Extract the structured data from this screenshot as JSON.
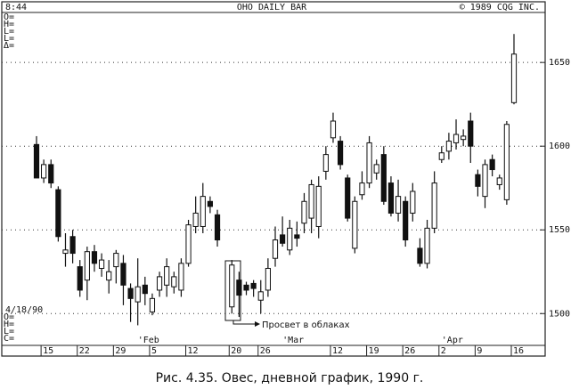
{
  "chart_data": {
    "type": "candlestick",
    "time": "8:44",
    "title": "OHO DAILY BAR",
    "copyright": "© 1989 CQG INC.",
    "readout_top": [
      "O=",
      "H=",
      "L=",
      "L=",
      "Δ="
    ],
    "readout_bottom": [
      "O=",
      "H=",
      "L=",
      "C="
    ],
    "date_label": "4/18/90",
    "annotation": "Просвет в облаках",
    "color": "#111111",
    "categories": [
      null,
      "15",
      null,
      null,
      null,
      null,
      "22",
      null,
      null,
      null,
      null,
      "29",
      null,
      null,
      null,
      null,
      "5",
      null,
      null,
      null,
      null,
      "12",
      null,
      null,
      null,
      null,
      null,
      "20",
      null,
      null,
      null,
      "26",
      null,
      null,
      null,
      null,
      null,
      null,
      null,
      null,
      null,
      "12",
      null,
      null,
      null,
      null,
      "19",
      null,
      null,
      null,
      null,
      "26",
      null,
      null,
      null,
      null,
      "2",
      null,
      null,
      null,
      null,
      "9",
      null,
      null,
      null,
      null,
      "16"
    ],
    "months": [
      null,
      null,
      null,
      null,
      null,
      null,
      null,
      null,
      null,
      null,
      null,
      null,
      null,
      null,
      "'Feb",
      null,
      null,
      null,
      null,
      null,
      null,
      null,
      null,
      null,
      null,
      null,
      null,
      null,
      null,
      null,
      null,
      null,
      null,
      null,
      "'Mar",
      null,
      null,
      null,
      null,
      null,
      null,
      null,
      null,
      null,
      null,
      null,
      null,
      null,
      null,
      null,
      null,
      null,
      null,
      null,
      null,
      null,
      "'Apr",
      null,
      null,
      null,
      null,
      null,
      null,
      null,
      null,
      null,
      null
    ],
    "open": [
      1601,
      1581,
      1589,
      1574,
      1536,
      1546,
      1528,
      1520,
      1537,
      1527,
      1520,
      1528,
      1530,
      1515,
      1507,
      1517,
      1501,
      1514,
      1517,
      1516,
      1514,
      1530,
      1552,
      1552,
      1567,
      1559,
      null,
      1504,
      1520,
      1517,
      1518,
      1508,
      1514,
      1533,
      1547,
      1538,
      1547,
      1554,
      1557,
      1552,
      1585,
      1605,
      1603,
      1581,
      1539,
      1571,
      1578,
      1584,
      1595,
      1578,
      1560,
      1567,
      1560,
      1539,
      1530,
      1551,
      1592,
      1597,
      1602,
      1604,
      1615,
      1583,
      1570,
      1592,
      1577,
      1568,
      1626
    ],
    "high": [
      1606,
      1592,
      1592,
      1576,
      1548,
      1550,
      1532,
      1540,
      1541,
      1536,
      1532,
      1538,
      1535,
      1518,
      1533,
      1522,
      1512,
      1525,
      1533,
      1525,
      1533,
      1556,
      1570,
      1578,
      1570,
      1562,
      null,
      1532,
      1525,
      1519,
      1520,
      1520,
      1533,
      1552,
      1558,
      1556,
      1555,
      1572,
      1580,
      1582,
      1600,
      1620,
      1606,
      1583,
      1570,
      1585,
      1606,
      1592,
      1600,
      1582,
      1580,
      1570,
      1578,
      1545,
      1556,
      1585,
      1600,
      1608,
      1616,
      1610,
      1620,
      1586,
      1592,
      1595,
      1583,
      1615,
      1667
    ],
    "low": [
      1581,
      1578,
      1575,
      1543,
      1528,
      1530,
      1510,
      1508,
      1525,
      1522,
      1512,
      1518,
      1505,
      1495,
      1493,
      1505,
      1499,
      1510,
      1510,
      1512,
      1510,
      1528,
      1548,
      1548,
      1560,
      1540,
      null,
      1500,
      1498,
      1511,
      1510,
      1500,
      1510,
      1528,
      1540,
      1535,
      1540,
      1548,
      1548,
      1545,
      1580,
      1602,
      1586,
      1555,
      1536,
      1568,
      1575,
      1580,
      1565,
      1558,
      1555,
      1540,
      1555,
      1528,
      1527,
      1548,
      1590,
      1592,
      1598,
      1600,
      1590,
      1570,
      1563,
      1582,
      1574,
      1565,
      1625
    ],
    "close": [
      1581,
      1589,
      1578,
      1546,
      1538,
      1536,
      1514,
      1537,
      1530,
      1532,
      1525,
      1536,
      1517,
      1509,
      1516,
      1512,
      1509,
      1522,
      1528,
      1522,
      1530,
      1553,
      1560,
      1570,
      1564,
      1544,
      null,
      1529,
      1511,
      1514,
      1515,
      1513,
      1527,
      1544,
      1542,
      1551,
      1545,
      1567,
      1577,
      1576,
      1595,
      1615,
      1589,
      1557,
      1567,
      1578,
      1602,
      1589,
      1567,
      1560,
      1570,
      1544,
      1573,
      1530,
      1551,
      1578,
      1596,
      1603,
      1607,
      1606,
      1600,
      1576,
      1589,
      1586,
      1581,
      1613,
      1655
    ],
    "ylim": [
      1481,
      1682
    ],
    "yticks": [
      1500,
      1550,
      1600,
      1650
    ],
    "grid": true
  },
  "caption": "Рис. 4.35. Овес, дневной график, 1990 г."
}
